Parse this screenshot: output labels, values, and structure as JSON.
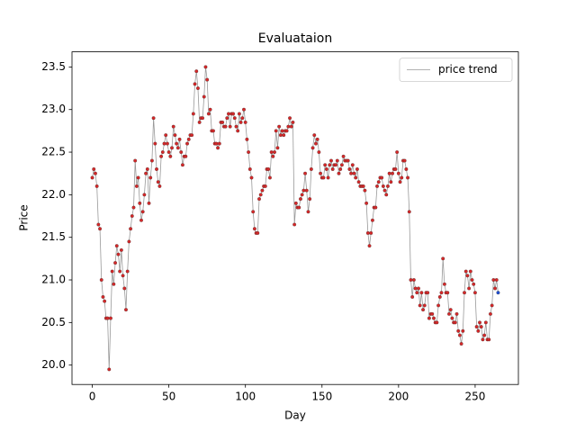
{
  "chart_data": {
    "type": "line",
    "title": "Evaluataion",
    "x_label": "Day",
    "y_label": "Price",
    "series": [
      {
        "name": "price trend",
        "color": "#999999",
        "marker_color": "#d62728",
        "last_marker_color": "#1f4fd6",
        "values": [
          22.2,
          22.3,
          22.25,
          22.1,
          21.65,
          21.6,
          21.0,
          20.8,
          20.75,
          20.55,
          20.55,
          19.95,
          20.55,
          21.1,
          20.95,
          21.2,
          21.4,
          21.3,
          21.1,
          21.35,
          21.05,
          20.9,
          20.65,
          21.1,
          21.45,
          21.6,
          21.75,
          21.85,
          22.4,
          22.1,
          22.2,
          21.9,
          21.7,
          21.8,
          22.0,
          22.25,
          22.3,
          21.9,
          22.2,
          22.4,
          22.9,
          22.6,
          22.3,
          22.15,
          22.1,
          22.45,
          22.5,
          22.6,
          22.7,
          22.6,
          22.5,
          22.45,
          22.55,
          22.8,
          22.7,
          22.6,
          22.55,
          22.65,
          22.5,
          22.35,
          22.45,
          22.45,
          22.6,
          22.65,
          22.7,
          22.7,
          22.95,
          23.3,
          23.45,
          23.25,
          22.85,
          22.9,
          22.9,
          23.15,
          23.5,
          23.35,
          22.95,
          23.0,
          22.75,
          22.75,
          22.6,
          22.6,
          22.55,
          22.6,
          22.85,
          22.85,
          22.8,
          22.8,
          22.9,
          22.95,
          22.8,
          22.95,
          22.95,
          22.9,
          22.8,
          22.75,
          22.95,
          22.85,
          22.9,
          23.0,
          22.85,
          22.65,
          22.5,
          22.3,
          22.2,
          21.8,
          21.6,
          21.55,
          21.55,
          21.95,
          22.0,
          22.05,
          22.1,
          22.1,
          22.3,
          22.3,
          22.2,
          22.5,
          22.45,
          22.5,
          22.75,
          22.55,
          22.8,
          22.7,
          22.75,
          22.7,
          22.75,
          22.75,
          22.8,
          22.9,
          22.8,
          22.85,
          21.65,
          21.9,
          21.85,
          21.85,
          21.95,
          22.0,
          22.05,
          22.25,
          22.05,
          21.8,
          21.95,
          22.3,
          22.55,
          22.7,
          22.6,
          22.65,
          22.5,
          22.25,
          22.2,
          22.2,
          22.35,
          22.3,
          22.2,
          22.35,
          22.4,
          22.3,
          22.35,
          22.35,
          22.4,
          22.25,
          22.3,
          22.35,
          22.45,
          22.4,
          22.4,
          22.4,
          22.3,
          22.25,
          22.35,
          22.25,
          22.2,
          22.3,
          22.15,
          22.1,
          22.1,
          22.1,
          22.05,
          21.9,
          21.55,
          21.4,
          21.55,
          21.7,
          21.85,
          21.85,
          22.1,
          22.15,
          22.2,
          22.2,
          22.1,
          22.05,
          22.0,
          22.1,
          22.25,
          22.15,
          22.25,
          22.3,
          22.3,
          22.5,
          22.25,
          22.15,
          22.2,
          22.4,
          22.4,
          22.3,
          22.2,
          21.8,
          21.0,
          20.8,
          21.0,
          20.9,
          20.85,
          20.9,
          20.7,
          20.85,
          20.65,
          20.7,
          20.85,
          20.85,
          20.55,
          20.6,
          20.6,
          20.55,
          20.5,
          20.5,
          20.7,
          20.8,
          20.85,
          21.25,
          20.95,
          20.85,
          20.85,
          20.6,
          20.65,
          20.55,
          20.5,
          20.5,
          20.6,
          20.4,
          20.35,
          20.25,
          20.4,
          20.85,
          21.1,
          21.05,
          20.9,
          21.1,
          21.0,
          20.95,
          20.85,
          20.45,
          20.4,
          20.5,
          20.45,
          20.3,
          20.35,
          20.5,
          20.3,
          20.3,
          20.6,
          20.7,
          21.0,
          20.9,
          21.0,
          20.85
        ]
      }
    ],
    "xlim": [
      -13.25,
      278.25
    ],
    "xticks": [
      0,
      50,
      100,
      150,
      200,
      250
    ],
    "ylim": [
      19.7725,
      23.6775
    ],
    "yticks": [
      {
        "value": 20,
        "label": "20.0"
      },
      20.5,
      {
        "value": 21,
        "label": "21.0"
      },
      21.5,
      {
        "value": 22,
        "label": "22.0"
      },
      22.5,
      {
        "value": 23,
        "label": "23.0"
      },
      23.5
    ],
    "grid": false,
    "legend": "upper right"
  }
}
